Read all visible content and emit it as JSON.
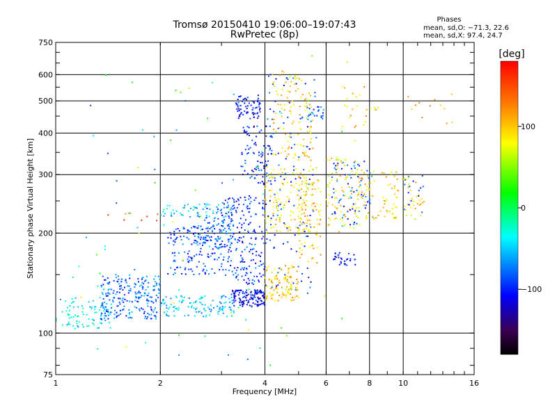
{
  "chart_data": {
    "type": "scatter",
    "title": "Tromsø 20150410 19:06:00–19:07:43",
    "subtitle": "RwPretec (8p)",
    "xlabel": "Frequency [MHz]",
    "ylabel": "Stationary phase Virtual Height [km]",
    "x_scale": "log",
    "y_scale": "log",
    "xlim": [
      1,
      16
    ],
    "ylim": [
      75,
      750
    ],
    "x_ticks": [
      1,
      2,
      4,
      6,
      8,
      10,
      16
    ],
    "x_tick_labels": [
      "1",
      "2",
      "4",
      "6",
      "8",
      "10",
      "16"
    ],
    "x_grid": [
      2,
      4,
      6,
      8,
      10
    ],
    "y_ticks": [
      75,
      100,
      200,
      300,
      400,
      500,
      600,
      750
    ],
    "y_tick_labels": [
      "75",
      "100",
      "200",
      "300",
      "400",
      "500",
      "600",
      "750"
    ],
    "y_grid": [
      100,
      200,
      300,
      400,
      500,
      600
    ],
    "grid": true,
    "legend": {
      "title": "Phases",
      "lines": [
        "mean, sd,O: −71.3, 22.6",
        "mean, sd,X:  97.4, 24.7"
      ],
      "placement": "top-right"
    },
    "colorbar": {
      "label": "[deg]",
      "range": [
        -180,
        180
      ],
      "ticks": [
        100,
        0,
        -100
      ],
      "tick_labels": [
        "100",
        "0",
        "−100"
      ],
      "colors": [
        "#ff0000",
        "#ff8000",
        "#ffff00",
        "#00ff00",
        "#00ffff",
        "#0000ff",
        "#000000"
      ]
    },
    "clusters": [
      {
        "f": [
          1.0,
          1.45
        ],
        "h": [
          103,
          128
        ],
        "phase": -40,
        "n": 90,
        "spread": 1.0
      },
      {
        "f": [
          1.35,
          2.0
        ],
        "h": [
          110,
          150
        ],
        "phase": -80,
        "n": 220,
        "spread": 1.0
      },
      {
        "f": [
          2.0,
          3.3
        ],
        "h": [
          112,
          130
        ],
        "phase": -50,
        "n": 120,
        "spread": 1.0
      },
      {
        "f": [
          2.1,
          3.0
        ],
        "h": [
          150,
          210
        ],
        "phase": -90,
        "n": 140,
        "spread": 1.0
      },
      {
        "f": [
          2.5,
          3.3
        ],
        "h": [
          180,
          240
        ],
        "phase": -75,
        "n": 120,
        "spread": 1.0
      },
      {
        "f": [
          2.0,
          3.0
        ],
        "h": [
          225,
          245
        ],
        "phase": -50,
        "n": 40,
        "spread": 1.0
      },
      {
        "f": [
          1.4,
          2.0
        ],
        "h": [
          218,
          230
        ],
        "phase": 140,
        "n": 8,
        "spread": 1.0
      },
      {
        "f": [
          3.2,
          4.0
        ],
        "h": [
          120,
          135
        ],
        "phase": -110,
        "n": 130,
        "spread": 1.0
      },
      {
        "f": [
          3.0,
          4.0
        ],
        "h": [
          140,
          260
        ],
        "phase": -95,
        "n": 200,
        "spread": 1.0
      },
      {
        "f": [
          3.3,
          3.9
        ],
        "h": [
          440,
          520
        ],
        "phase": -110,
        "n": 70,
        "spread": 1.0
      },
      {
        "f": [
          3.4,
          4.2
        ],
        "h": [
          280,
          420
        ],
        "phase": -100,
        "n": 90,
        "spread": 1.0
      },
      {
        "f": [
          4.0,
          5.0
        ],
        "h": [
          125,
          160
        ],
        "phase": 100,
        "n": 110,
        "spread": 1.0
      },
      {
        "f": [
          4.0,
          5.5
        ],
        "h": [
          200,
          320
        ],
        "phase": 90,
        "n": 130,
        "spread": 1.0
      },
      {
        "f": [
          4.2,
          5.5
        ],
        "h": [
          330,
          620
        ],
        "phase": 95,
        "n": 110,
        "spread": 1.0
      },
      {
        "f": [
          4.0,
          5.6
        ],
        "h": [
          130,
          620
        ],
        "phase": -95,
        "n": 120,
        "spread": 1.0
      },
      {
        "f": [
          5.0,
          5.8
        ],
        "h": [
          160,
          300
        ],
        "phase": 100,
        "n": 80,
        "spread": 1.0
      },
      {
        "f": [
          5.3,
          5.9
        ],
        "h": [
          440,
          480
        ],
        "phase": -80,
        "n": 25,
        "spread": 1.0
      },
      {
        "f": [
          6.3,
          7.3
        ],
        "h": [
          160,
          175
        ],
        "phase": -105,
        "n": 30,
        "spread": 1.0
      },
      {
        "f": [
          6.0,
          7.5
        ],
        "h": [
          200,
          340
        ],
        "phase": 90,
        "n": 80,
        "spread": 1.0
      },
      {
        "f": [
          6.2,
          8.2
        ],
        "h": [
          210,
          330
        ],
        "phase": -90,
        "n": 70,
        "spread": 1.0
      },
      {
        "f": [
          7.3,
          9.7
        ],
        "h": [
          220,
          310
        ],
        "phase": 95,
        "n": 80,
        "spread": 1.0
      },
      {
        "f": [
          6.5,
          8.5
        ],
        "h": [
          400,
          560
        ],
        "phase": 100,
        "n": 25,
        "spread": 1.0
      },
      {
        "f": [
          10.0,
          11.5
        ],
        "h": [
          220,
          300
        ],
        "phase": 90,
        "n": 30,
        "spread": 1.0
      },
      {
        "f": [
          10.0,
          11.5
        ],
        "h": [
          230,
          300
        ],
        "phase": -90,
        "n": 15,
        "spread": 1.0
      },
      {
        "f": [
          10.0,
          14.5
        ],
        "h": [
          420,
          540
        ],
        "phase": 110,
        "n": 12,
        "spread": 1.0
      },
      {
        "f": [
          1.1,
          7.5
        ],
        "h": [
          80,
          700
        ],
        "phase": 0,
        "n": 90,
        "spread": 3.0
      }
    ]
  }
}
